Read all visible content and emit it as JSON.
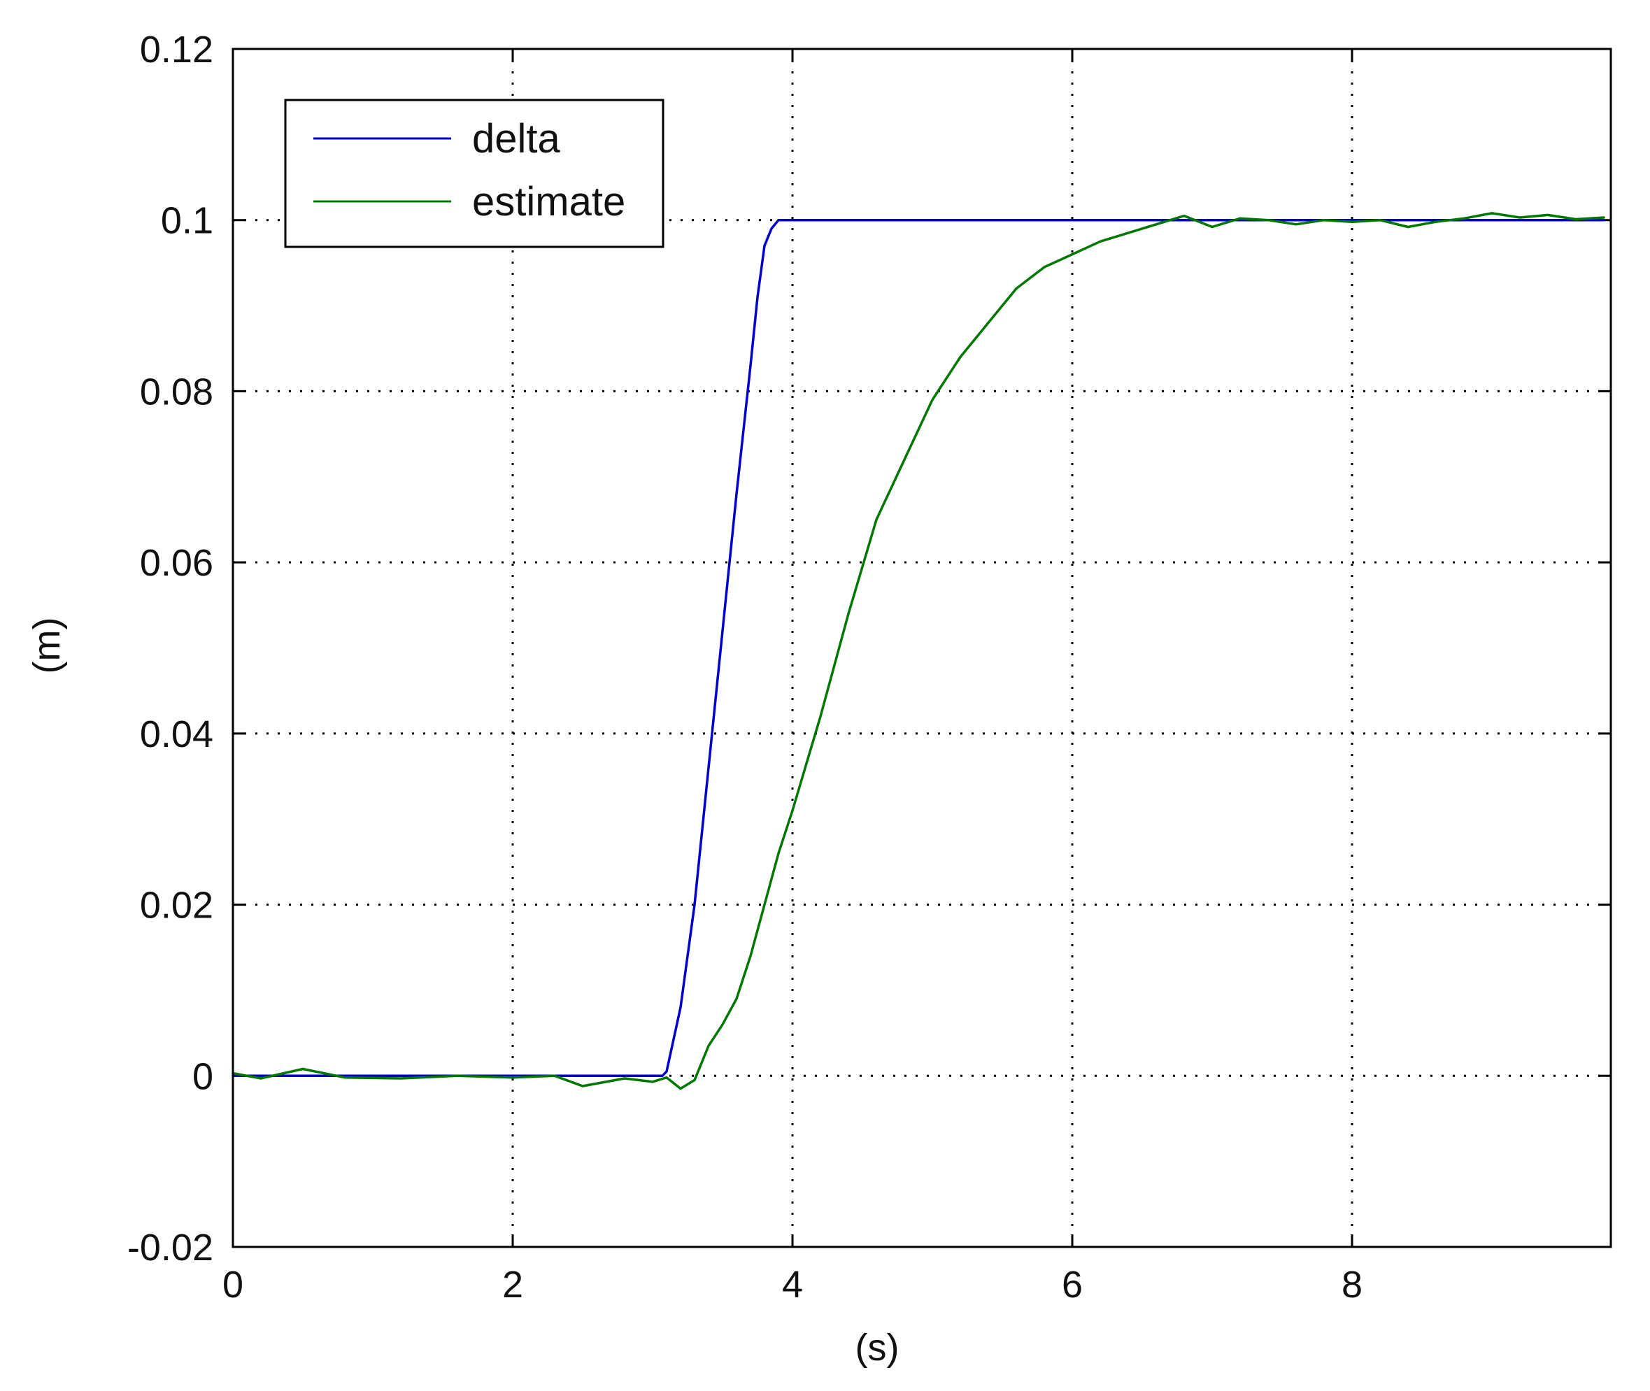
{
  "chart_data": {
    "type": "line",
    "xlabel": "(s)",
    "ylabel": "(m)",
    "xlim": [
      0,
      9.85
    ],
    "ylim": [
      -0.02,
      0.12
    ],
    "xticks": [
      0,
      2,
      4,
      6,
      8
    ],
    "yticks": [
      -0.02,
      0,
      0.02,
      0.04,
      0.06,
      0.08,
      0.1,
      0.12
    ],
    "xtick_labels": [
      "0",
      "2",
      "4",
      "6",
      "8"
    ],
    "ytick_labels": [
      "-0.02",
      "0",
      "0.02",
      "0.04",
      "0.06",
      "0.08",
      "0.1",
      "0.12"
    ],
    "grid": true,
    "legend_position": "top-left",
    "series": [
      {
        "name": "delta",
        "color": "#0000cc",
        "x": [
          0,
          1,
          2,
          3,
          3.07,
          3.1,
          3.2,
          3.3,
          3.4,
          3.5,
          3.6,
          3.7,
          3.75,
          3.8,
          3.85,
          3.9,
          4,
          5,
          6,
          7,
          8,
          9,
          9.8
        ],
        "y": [
          0,
          0,
          0,
          0,
          0,
          0.0005,
          0.008,
          0.02,
          0.036,
          0.052,
          0.068,
          0.083,
          0.091,
          0.097,
          0.099,
          0.1,
          0.1,
          0.1,
          0.1,
          0.1,
          0.1,
          0.1,
          0.1
        ]
      },
      {
        "name": "estimate",
        "color": "#007700",
        "x": [
          0,
          0.2,
          0.5,
          0.8,
          1.2,
          1.6,
          2.0,
          2.3,
          2.5,
          2.8,
          3.0,
          3.1,
          3.2,
          3.3,
          3.4,
          3.5,
          3.6,
          3.7,
          3.8,
          3.9,
          4.0,
          4.2,
          4.4,
          4.6,
          4.8,
          5.0,
          5.2,
          5.4,
          5.6,
          5.8,
          6.0,
          6.2,
          6.4,
          6.6,
          6.8,
          7.0,
          7.2,
          7.4,
          7.6,
          7.8,
          8.0,
          8.2,
          8.4,
          8.6,
          8.8,
          9.0,
          9.2,
          9.4,
          9.6,
          9.8
        ],
        "y": [
          0.0003,
          -0.0003,
          0.0008,
          -0.0002,
          -0.0003,
          0,
          -0.0002,
          0,
          -0.0012,
          -0.0003,
          -0.0007,
          -0.0002,
          -0.0015,
          -0.0005,
          0.0035,
          0.006,
          0.009,
          0.014,
          0.02,
          0.026,
          0.031,
          0.042,
          0.054,
          0.065,
          0.072,
          0.079,
          0.084,
          0.088,
          0.092,
          0.0945,
          0.096,
          0.0975,
          0.0985,
          0.0995,
          0.1005,
          0.0992,
          0.1002,
          0.1,
          0.0995,
          0.1,
          0.0998,
          0.1,
          0.0992,
          0.0998,
          0.1002,
          0.1008,
          0.1003,
          0.1006,
          0.1001,
          0.1003
        ]
      }
    ]
  }
}
